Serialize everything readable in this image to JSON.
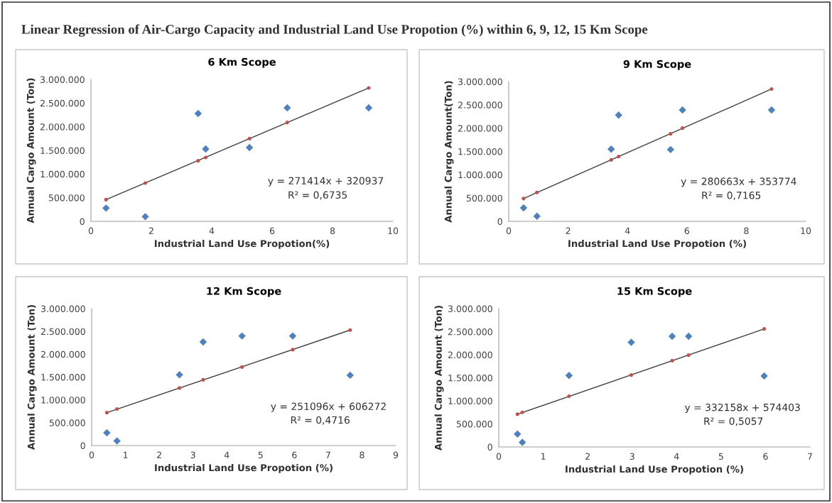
{
  "chart_data": [
    {
      "type": "scatter",
      "title": "6 Km Scope",
      "xlabel": "Industrial Land Use Propotion(%)",
      "ylabel": "Annual Cargo Amount (Ton)",
      "annotations": [
        "Linear Regression of Air-Cargo Capacity and Industrial Land Use Propotion (%) within 6, 9, 12, 15 Km Scope",
        "y = 271414x + 320937",
        "R² = 0,6735"
      ],
      "xlim": [
        0,
        10
      ],
      "xticks": [
        0,
        2,
        4,
        6,
        8,
        10
      ],
      "ylim": [
        0,
        3000000
      ],
      "yticks": [
        {
          "value": 0,
          "label": "0"
        },
        {
          "value": 500000,
          "label": "500.000"
        },
        {
          "value": 1000000,
          "label": "1.000.000"
        },
        {
          "value": 1500000,
          "label": "1.500.000"
        },
        {
          "value": 2000000,
          "label": "2.000.000"
        },
        {
          "value": 2500000,
          "label": "2.500.000"
        },
        {
          "value": 3000000,
          "label": "3.000.000"
        }
      ],
      "series": [
        {
          "type": "scatter",
          "marker": "diamond",
          "color": "#4f81bd",
          "x": [
            0.5,
            1.8,
            3.55,
            3.8,
            5.25,
            6.5,
            9.2
          ],
          "values": [
            280000,
            100000,
            2280000,
            1530000,
            1560000,
            2400000,
            2400000
          ]
        },
        {
          "type": "line",
          "marker": "none",
          "color": "#404040",
          "x": [
            0.5,
            9.2
          ],
          "values": [
            460000,
            2820000
          ]
        },
        {
          "type": "scatter",
          "marker": "circle",
          "color": "#c0504d",
          "x": [
            0.5,
            1.8,
            3.55,
            3.8,
            5.25,
            6.5,
            9.2
          ],
          "values": [
            460000,
            810000,
            1280000,
            1350000,
            1750000,
            2090000,
            2820000
          ]
        }
      ]
    },
    {
      "type": "scatter",
      "title": "9 Km Scope",
      "xlabel": "Industrial Land Use Propotion (%)",
      "ylabel": "Annual Cargo Amount(Ton)",
      "annotations": [
        "y = 280663x + 353774",
        "R² = 0,7165"
      ],
      "xlim": [
        0,
        10
      ],
      "xticks": [
        0,
        2,
        4,
        6,
        8,
        10
      ],
      "ylim": [
        0,
        3000000
      ],
      "yticks": [
        {
          "value": 0,
          "label": "0"
        },
        {
          "value": 500000,
          "label": "500.000"
        },
        {
          "value": 1000000,
          "label": "1.000.000"
        },
        {
          "value": 1500000,
          "label": "1.500.000"
        },
        {
          "value": 2000000,
          "label": "2.000.000"
        },
        {
          "value": 2500000,
          "label": "2.500.000"
        },
        {
          "value": 3000000,
          "label": "3.000.000"
        }
      ],
      "series": [
        {
          "type": "scatter",
          "marker": "diamond",
          "color": "#4f81bd",
          "x": [
            0.5,
            0.95,
            3.45,
            3.7,
            5.45,
            5.85,
            8.85
          ],
          "values": [
            290000,
            110000,
            1550000,
            2280000,
            1540000,
            2390000,
            2390000
          ]
        },
        {
          "type": "line",
          "marker": "none",
          "color": "#404040",
          "x": [
            0.5,
            8.85
          ],
          "values": [
            490000,
            2840000
          ]
        },
        {
          "type": "scatter",
          "marker": "circle",
          "color": "#c0504d",
          "x": [
            0.5,
            0.95,
            3.45,
            3.7,
            5.45,
            5.85,
            8.85
          ],
          "values": [
            490000,
            620000,
            1320000,
            1390000,
            1880000,
            2000000,
            2840000
          ]
        }
      ]
    },
    {
      "type": "scatter",
      "title": "12 Km Scope",
      "xlabel": "Industrial Land Use Propotion (%)",
      "ylabel": "Annual Cargo Amount (Ton)",
      "annotations": [
        "y = 251096x + 606272",
        "R² = 0,4716"
      ],
      "xlim": [
        0,
        9
      ],
      "xticks": [
        0,
        1,
        2,
        3,
        4,
        5,
        6,
        7,
        8,
        9
      ],
      "ylim": [
        0,
        3000000
      ],
      "yticks": [
        {
          "value": 0,
          "label": "0"
        },
        {
          "value": 500000,
          "label": "500.000"
        },
        {
          "value": 1000000,
          "label": "1.000.000"
        },
        {
          "value": 1500000,
          "label": "1.500.000"
        },
        {
          "value": 2000000,
          "label": "2.000.000"
        },
        {
          "value": 2500000,
          "label": "2.500.000"
        },
        {
          "value": 3000000,
          "label": "3.000.000"
        }
      ],
      "series": [
        {
          "type": "scatter",
          "marker": "diamond",
          "color": "#4f81bd",
          "x": [
            0.45,
            0.75,
            2.6,
            3.3,
            4.45,
            5.95,
            7.65
          ],
          "values": [
            280000,
            100000,
            1550000,
            2270000,
            2400000,
            2400000,
            1540000
          ]
        },
        {
          "type": "line",
          "marker": "none",
          "color": "#404040",
          "x": [
            0.45,
            7.65
          ],
          "values": [
            720000,
            2530000
          ]
        },
        {
          "type": "scatter",
          "marker": "circle",
          "color": "#c0504d",
          "x": [
            0.45,
            0.75,
            2.6,
            3.3,
            4.45,
            5.95,
            7.65
          ],
          "values": [
            720000,
            800000,
            1260000,
            1440000,
            1720000,
            2100000,
            2530000
          ]
        }
      ]
    },
    {
      "type": "scatter",
      "title": "15 Km Scope",
      "xlabel": "Industrial Land Use Propotion (%)",
      "ylabel": "Annual Cargo Amount (Ton)",
      "annotations": [
        "y = 332158x + 574403",
        "R² = 0,5057"
      ],
      "xlim": [
        0,
        7
      ],
      "xticks": [
        0,
        1,
        2,
        3,
        4,
        5,
        6,
        7
      ],
      "ylim": [
        0,
        3000000
      ],
      "yticks": [
        {
          "value": 0,
          "label": "0"
        },
        {
          "value": 500000,
          "label": "500.000"
        },
        {
          "value": 1000000,
          "label": "1.000.000"
        },
        {
          "value": 1500000,
          "label": "1.500.000"
        },
        {
          "value": 2000000,
          "label": "2.000.000"
        },
        {
          "value": 2500000,
          "label": "2.500.000"
        },
        {
          "value": 3000000,
          "label": "3.000.000"
        }
      ],
      "series": [
        {
          "type": "scatter",
          "marker": "diamond",
          "color": "#4f81bd",
          "x": [
            0.42,
            0.53,
            1.58,
            2.98,
            3.9,
            4.27,
            5.97
          ],
          "values": [
            280000,
            100000,
            1550000,
            2270000,
            2400000,
            2400000,
            1540000
          ]
        },
        {
          "type": "line",
          "marker": "none",
          "color": "#404040",
          "x": [
            0.42,
            5.97
          ],
          "values": [
            710000,
            2560000
          ]
        },
        {
          "type": "scatter",
          "marker": "circle",
          "color": "#c0504d",
          "x": [
            0.42,
            0.53,
            1.58,
            2.98,
            3.9,
            4.27,
            5.97
          ],
          "values": [
            710000,
            750000,
            1100000,
            1560000,
            1870000,
            1990000,
            2560000
          ]
        }
      ]
    }
  ]
}
